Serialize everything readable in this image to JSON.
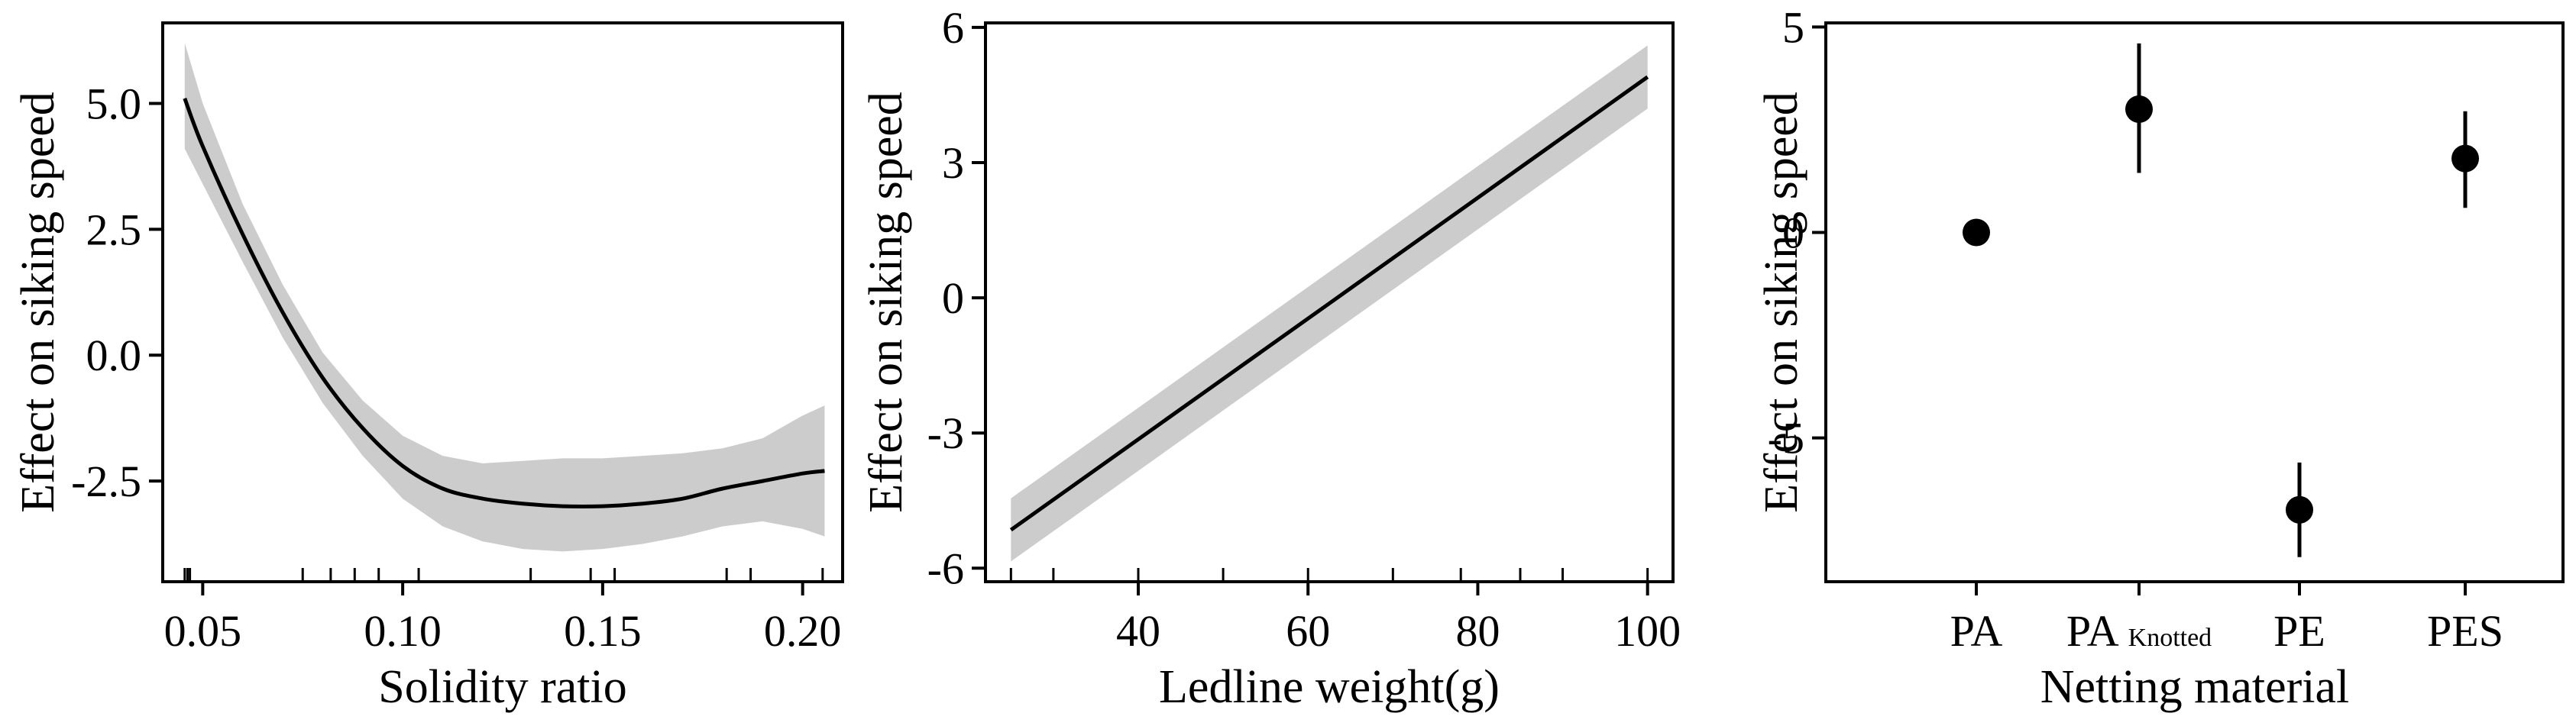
{
  "chart_data": [
    {
      "type": "line",
      "xlabel": "Solidity ratio",
      "ylabel": "Effect on siking speed",
      "xlim": [
        0.04,
        0.21
      ],
      "ylim": [
        -4.5,
        6.6
      ],
      "x_ticks": [
        0.05,
        0.1,
        0.15,
        0.2
      ],
      "x_tick_labels": [
        "0.05",
        "0.10",
        "0.15",
        "0.20"
      ],
      "y_ticks": [
        5.0,
        2.5,
        0.0,
        -2.5
      ],
      "y_tick_labels": [
        "5.0",
        "2.5",
        "0.0",
        "-2.5"
      ],
      "series": [
        {
          "x": [
            0.0455,
            0.05,
            0.06,
            0.07,
            0.08,
            0.09,
            0.1,
            0.11,
            0.12,
            0.13,
            0.14,
            0.15,
            0.16,
            0.17,
            0.18,
            0.19,
            0.2,
            0.2055
          ],
          "y": [
            5.1,
            4.15,
            2.4,
            0.85,
            -0.45,
            -1.45,
            -2.2,
            -2.65,
            -2.85,
            -2.95,
            -3.0,
            -3.0,
            -2.95,
            -2.85,
            -2.65,
            -2.5,
            -2.35,
            -2.3
          ],
          "lower": [
            4.1,
            3.4,
            1.85,
            0.35,
            -0.95,
            -2.0,
            -2.85,
            -3.4,
            -3.7,
            -3.85,
            -3.9,
            -3.85,
            -3.75,
            -3.6,
            -3.4,
            -3.3,
            -3.45,
            -3.6
          ],
          "upper": [
            6.2,
            5.0,
            3.0,
            1.4,
            0.05,
            -0.9,
            -1.6,
            -2.0,
            -2.15,
            -2.1,
            -2.05,
            -2.05,
            -2.0,
            -1.95,
            -1.85,
            -1.65,
            -1.2,
            -1.0
          ]
        }
      ],
      "rug": [
        0.0455,
        0.0462,
        0.0468,
        0.075,
        0.082,
        0.088,
        0.094,
        0.104,
        0.132,
        0.147,
        0.153,
        0.181,
        0.187,
        0.205
      ]
    },
    {
      "type": "line",
      "xlabel": "Ledline weight(g)",
      "ylabel": "Effect on siking speed",
      "xlim": [
        22,
        103
      ],
      "ylim": [
        -6.3,
        6.1
      ],
      "x_ticks": [
        40,
        60,
        80,
        100
      ],
      "x_tick_labels": [
        "40",
        "60",
        "80",
        "100"
      ],
      "y_ticks": [
        6,
        3,
        0,
        -3,
        -6
      ],
      "y_tick_labels": [
        "6",
        "3",
        "0",
        "-3",
        "-6"
      ],
      "series": [
        {
          "x": [
            25,
            100
          ],
          "y": [
            -5.15,
            4.9
          ],
          "lower": [
            -5.85,
            4.2
          ],
          "upper": [
            -4.45,
            5.6
          ]
        }
      ],
      "rug": [
        25,
        30,
        40,
        50,
        60,
        70,
        78,
        85,
        90,
        100
      ]
    },
    {
      "type": "scatter",
      "xlabel": "Netting material",
      "ylabel": "Effect on siking speed",
      "ylim": [
        -8.5,
        5.1
      ],
      "categories": [
        {
          "main": "PA",
          "sub": ""
        },
        {
          "main": "PA",
          "sub": "Knotted"
        },
        {
          "main": "PE",
          "sub": ""
        },
        {
          "main": "PES",
          "sub": ""
        }
      ],
      "y_ticks": [
        5,
        0,
        -5
      ],
      "y_tick_labels": [
        "5",
        "0",
        "-5"
      ],
      "values": [
        0.0,
        3.0,
        -6.75,
        1.8
      ],
      "lower": [
        0.0,
        1.45,
        -7.9,
        0.6
      ],
      "upper": [
        0.0,
        4.6,
        -5.6,
        2.95
      ]
    }
  ]
}
